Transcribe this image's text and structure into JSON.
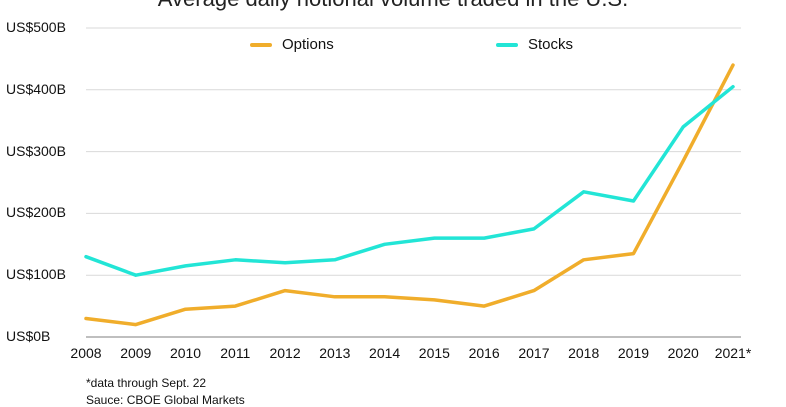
{
  "chart_data": {
    "type": "line",
    "title": "Average daily notional volume traded in the U.S.",
    "xlabel": "",
    "ylabel": "",
    "x": [
      "2008",
      "2009",
      "2010",
      "2011",
      "2012",
      "2013",
      "2014",
      "2015",
      "2016",
      "2017",
      "2018",
      "2019",
      "2020",
      "2021*"
    ],
    "ylim": [
      0,
      500
    ],
    "ytick_labels": [
      "US$0B",
      "US$100B",
      "US$200B",
      "US$300B",
      "US$400B",
      "US$500B"
    ],
    "grid": true,
    "legend_position": "top",
    "series": [
      {
        "name": "Options",
        "color": "#f0ad2b",
        "values": [
          30,
          20,
          45,
          50,
          75,
          65,
          65,
          60,
          50,
          75,
          125,
          135,
          285,
          440
        ]
      },
      {
        "name": "Stocks",
        "color": "#22e5d6",
        "values": [
          130,
          100,
          115,
          125,
          120,
          125,
          150,
          160,
          160,
          175,
          235,
          220,
          340,
          405
        ]
      }
    ]
  },
  "footnotes": {
    "note": "*data through Sept. 22",
    "source": "Sauce: CBOE Global Markets"
  }
}
